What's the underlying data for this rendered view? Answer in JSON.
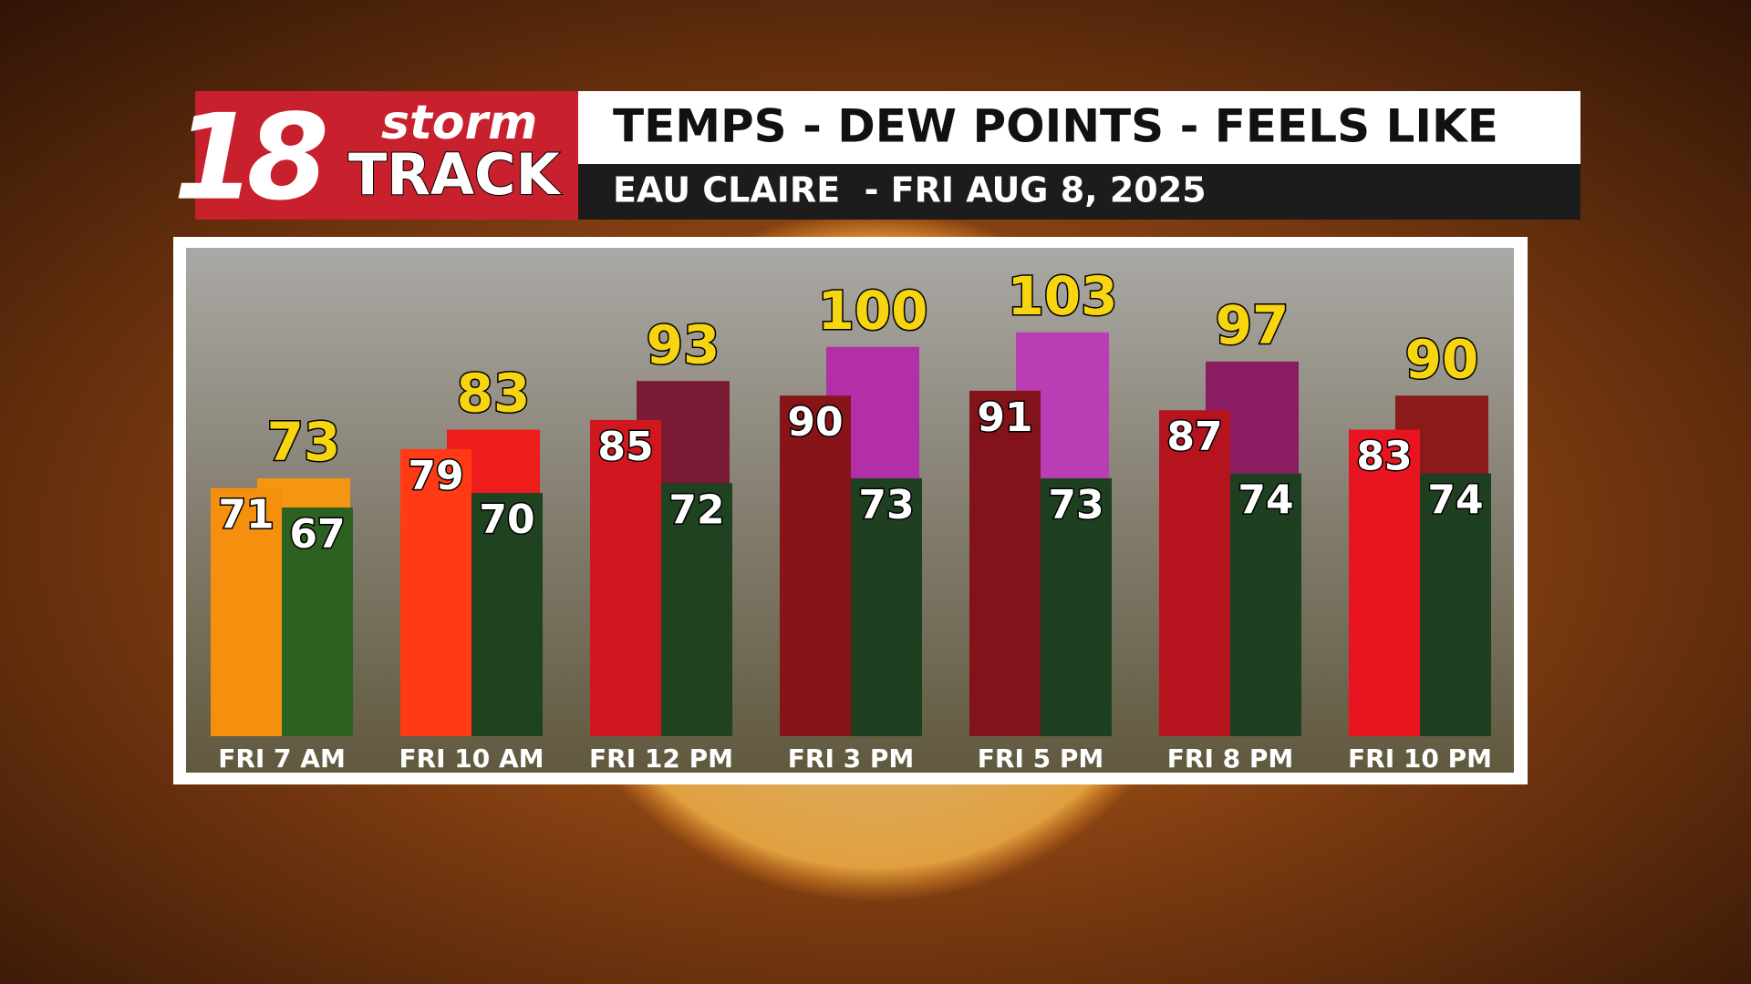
{
  "chart_data": {
    "type": "bar",
    "brand": {
      "number": "18",
      "top": "storm",
      "bottom": "TRACK"
    },
    "title": "TEMPS - DEW POINTS - FEELS LIKE",
    "subtitle": "EAU CLAIRE  - FRI AUG 8, 2025",
    "categories": [
      "FRI 7 AM",
      "FRI 10 AM",
      "FRI 12 PM",
      "FRI 3 PM",
      "FRI 5 PM",
      "FRI 8 PM",
      "FRI 10 PM"
    ],
    "ylim": [
      20,
      120
    ],
    "series": [
      {
        "colors": [
          "#f5900f",
          "#ff3a14",
          "#d0171f",
          "#871419",
          "#82131a",
          "#b5141f",
          "#e81520"
        ],
        "values": [
          71,
          79,
          85,
          90,
          91,
          87,
          83
        ]
      },
      {
        "colors": [
          "#2c6122",
          "#1f4220",
          "#1f4220",
          "#1e4020",
          "#1e4020",
          "#1e4020",
          "#1e4020"
        ],
        "values": [
          67,
          70,
          72,
          73,
          73,
          74,
          74
        ]
      },
      {
        "colors": [
          "#f59510",
          "#ef1c1c",
          "#7a1a35",
          "#b22fa8",
          "#bb3db5",
          "#8a1d61",
          "#8b1a1a"
        ],
        "values": [
          73,
          83,
          93,
          100,
          103,
          97,
          90
        ]
      }
    ]
  }
}
